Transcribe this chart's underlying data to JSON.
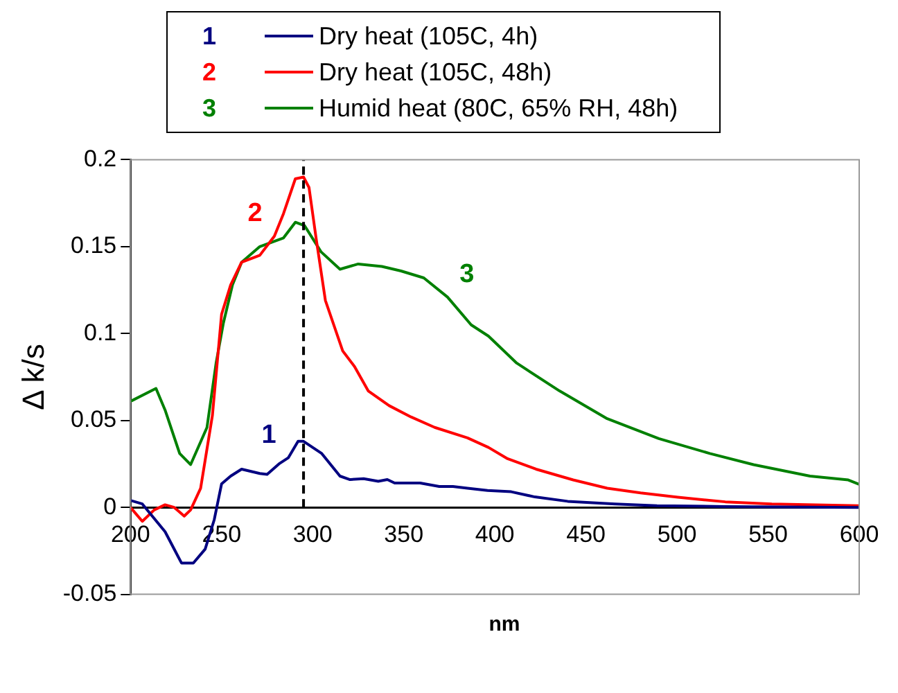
{
  "chart_data": {
    "type": "line",
    "xlabel": "nm",
    "ylabel": "Δ k/s",
    "xlim": [
      200,
      600
    ],
    "xticks": [
      200,
      250,
      300,
      350,
      400,
      450,
      500,
      550,
      600
    ],
    "ylim": [
      -0.05,
      0.2
    ],
    "yticks": [
      -0.05,
      0,
      0.05,
      0.1,
      0.15,
      0.2
    ],
    "grid": false,
    "legend": "top",
    "marker": "none",
    "line_style": "solid",
    "series": [
      {
        "name": "Dry heat (105C, 4h)",
        "color": "#000080",
        "x": [
          200,
          206.5,
          219,
          228,
          234.5,
          241,
          246,
          250,
          255,
          261,
          271,
          275,
          281.5,
          286.6,
          292,
          295,
          305,
          315,
          320.5,
          328,
          336,
          341,
          345,
          359,
          369.5,
          377,
          385,
          396,
          409,
          422,
          440,
          466,
          489,
          526,
          600
        ],
        "values": [
          0.004,
          0.002,
          -0.014,
          -0.032,
          -0.032,
          -0.024,
          -0.007,
          0.0135,
          0.018,
          0.022,
          0.0195,
          0.019,
          0.025,
          0.0285,
          0.038,
          0.038,
          0.031,
          0.018,
          0.016,
          0.0165,
          0.015,
          0.016,
          0.014,
          0.014,
          0.012,
          0.012,
          0.011,
          0.0097,
          0.009,
          0.006,
          0.0035,
          0.002,
          0.001,
          0.0005,
          0
        ]
      },
      {
        "name": "Dry heat (105C, 48h)",
        "color": "#ff0000",
        "x": [
          200,
          206.5,
          213,
          219,
          224,
          229.5,
          233,
          238.5,
          245,
          250,
          255,
          261,
          271,
          279,
          284,
          290.5,
          295,
          298,
          302,
          307,
          316.5,
          323,
          330.5,
          342,
          354,
          367,
          385,
          396.5,
          407,
          422.6,
          443,
          461.7,
          480,
          500.5,
          526.5,
          552,
          600
        ],
        "values": [
          0,
          -0.008,
          -0.0015,
          0.0015,
          0,
          -0.005,
          -0.0015,
          0.011,
          0.053,
          0.111,
          0.128,
          0.141,
          0.145,
          0.156,
          0.169,
          0.189,
          0.19,
          0.184,
          0.154,
          0.119,
          0.09,
          0.081,
          0.067,
          0.0585,
          0.052,
          0.046,
          0.04,
          0.0345,
          0.028,
          0.022,
          0.0158,
          0.011,
          0.0083,
          0.0058,
          0.0032,
          0.002,
          0.001
        ]
      },
      {
        "name": "Humid heat (80C, 65% RH, 48h)",
        "color": "#008000",
        "x": [
          200,
          214,
          219,
          227,
          233,
          242,
          247,
          251,
          256,
          261,
          271,
          284,
          290.5,
          295.6,
          304.6,
          315,
          325,
          338,
          348.5,
          361,
          374,
          387,
          396.5,
          412,
          435.5,
          461.7,
          490,
          518,
          542,
          573,
          594,
          600
        ],
        "values": [
          0.061,
          0.0684,
          0.056,
          0.031,
          0.0246,
          0.046,
          0.083,
          0.106,
          0.128,
          0.141,
          0.15,
          0.155,
          0.164,
          0.162,
          0.147,
          0.137,
          0.14,
          0.1386,
          0.136,
          0.132,
          0.121,
          0.105,
          0.0985,
          0.083,
          0.067,
          0.051,
          0.0396,
          0.031,
          0.0246,
          0.018,
          0.0158,
          0.0133
        ]
      }
    ],
    "annotations": [
      {
        "text": "1",
        "x": 286.6,
        "y": 0.0285
      },
      {
        "text": "2",
        "x": 279,
        "y": 0.156
      },
      {
        "text": "3",
        "x": 374,
        "y": 0.121
      }
    ],
    "ref_lines": [
      {
        "axis": "x",
        "value": 295,
        "color": "#000000",
        "line_style": "dashed"
      }
    ]
  }
}
